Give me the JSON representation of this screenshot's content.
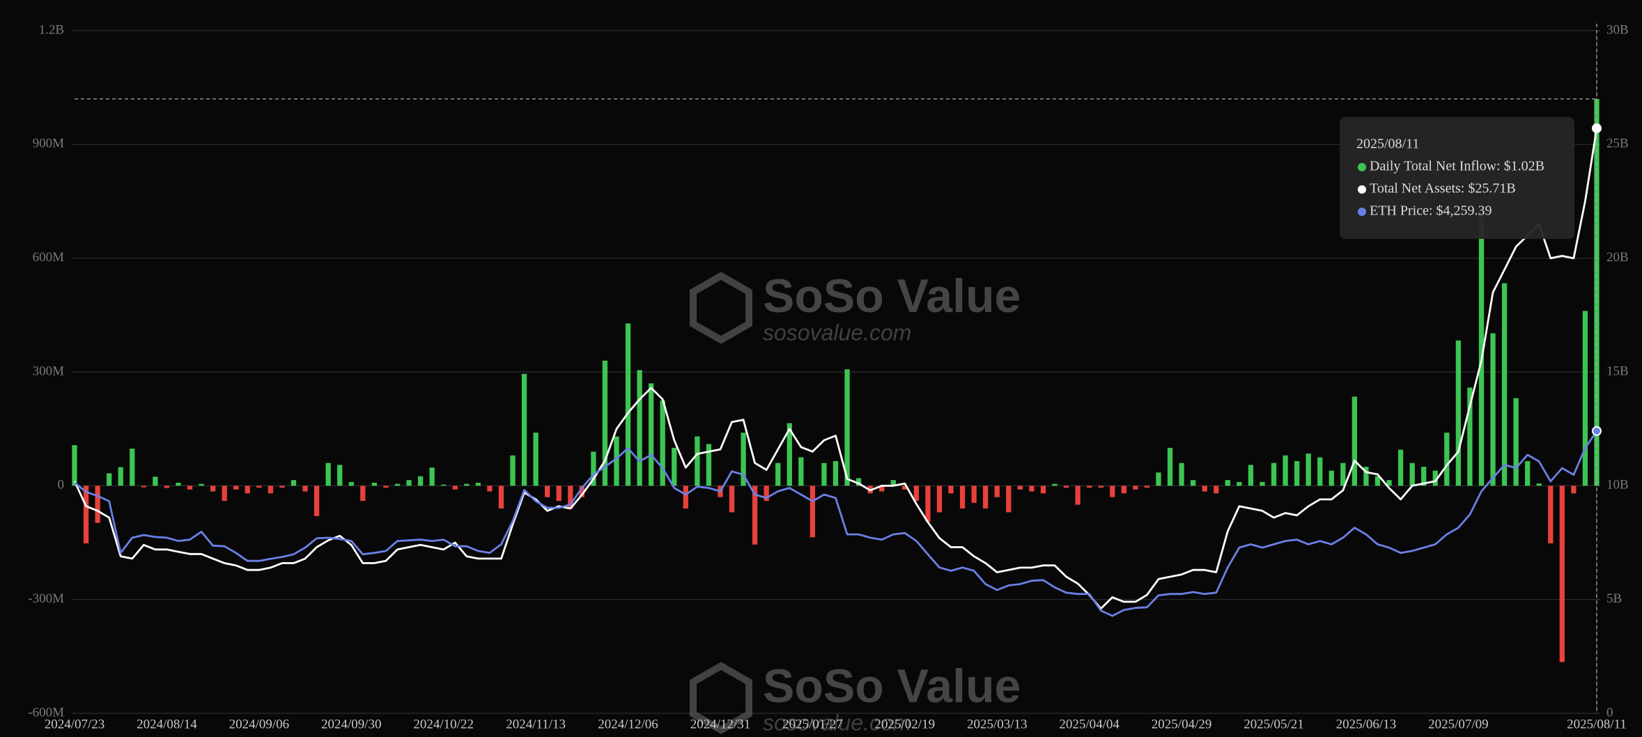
{
  "chart_data": {
    "type": "combo",
    "categories": [
      "2024/07/23",
      null,
      null,
      null,
      null,
      null,
      null,
      null,
      "2024/08/14",
      null,
      null,
      null,
      null,
      null,
      null,
      null,
      "2024/09/06",
      null,
      null,
      null,
      null,
      null,
      null,
      null,
      "2024/09/30",
      null,
      null,
      null,
      null,
      null,
      null,
      null,
      "2024/10/22",
      null,
      null,
      null,
      null,
      null,
      null,
      null,
      "2024/11/13",
      null,
      null,
      null,
      null,
      null,
      null,
      null,
      "2024/12/06",
      null,
      null,
      null,
      null,
      null,
      null,
      null,
      "2024/12/31",
      null,
      null,
      null,
      null,
      null,
      null,
      null,
      "2025/01/27",
      null,
      null,
      null,
      null,
      null,
      null,
      null,
      "2025/02/19",
      null,
      null,
      null,
      null,
      null,
      null,
      null,
      "2025/03/13",
      null,
      null,
      null,
      null,
      null,
      null,
      null,
      "2025/04/04",
      null,
      null,
      null,
      null,
      null,
      null,
      null,
      "2025/04/29",
      null,
      null,
      null,
      null,
      null,
      null,
      null,
      "2025/05/21",
      null,
      null,
      null,
      null,
      null,
      null,
      null,
      "2025/06/13",
      null,
      null,
      null,
      null,
      null,
      null,
      null,
      "2025/07/09",
      null,
      null,
      null,
      null,
      null,
      null,
      null,
      null,
      null,
      null,
      null,
      "2025/08/11"
    ],
    "series": [
      {
        "type": "bar",
        "axis": "y",
        "color": "#3cc552",
        "negative_color": "#e8413b",
        "values": [
          107,
          -152,
          -98,
          33,
          49,
          98,
          -4,
          24,
          -6,
          8,
          -10,
          5,
          -15,
          -40,
          -10,
          -20,
          -5,
          -20,
          -5,
          15,
          -15,
          -80,
          60,
          55,
          10,
          -40,
          8,
          -5,
          5,
          15,
          25,
          48,
          3,
          -10,
          5,
          8,
          -15,
          -60,
          80,
          295,
          140,
          -30,
          -40,
          -60,
          -30,
          90,
          330,
          130,
          428,
          305,
          270,
          225,
          100,
          -60,
          130,
          110,
          -30,
          -70,
          140,
          -155,
          -40,
          60,
          165,
          75,
          -136,
          60,
          65,
          307,
          20,
          -20,
          -15,
          15,
          -10,
          -40,
          -95,
          -70,
          -20,
          -60,
          -45,
          -60,
          -30,
          -70,
          -10,
          -15,
          -20,
          5,
          -5,
          -50,
          -5,
          -5,
          -30,
          -20,
          -10,
          -5,
          35,
          100,
          60,
          15,
          -15,
          -20,
          15,
          10,
          55,
          10,
          60,
          80,
          65,
          85,
          75,
          40,
          60,
          235,
          50,
          25,
          15,
          95,
          60,
          50,
          40,
          140,
          383,
          259,
          727,
          402,
          534,
          231,
          65,
          6,
          -152,
          -465,
          -20,
          461,
          1020
        ]
      },
      {
        "type": "line",
        "axis": "y2",
        "color": "#ffffff",
        "values": [
          10.2,
          9.1,
          8.9,
          8.6,
          6.9,
          6.8,
          7.4,
          7.2,
          7.2,
          7.1,
          7.0,
          7.0,
          6.8,
          6.6,
          6.5,
          6.3,
          6.3,
          6.4,
          6.6,
          6.6,
          6.8,
          7.3,
          7.6,
          7.8,
          7.4,
          6.6,
          6.6,
          6.7,
          7.2,
          7.3,
          7.4,
          7.3,
          7.2,
          7.5,
          6.9,
          6.8,
          6.8,
          6.8,
          8.3,
          9.7,
          9.4,
          8.9,
          9.1,
          9.0,
          9.6,
          10.3,
          11.1,
          12.5,
          13.2,
          13.8,
          14.3,
          13.8,
          12.0,
          10.8,
          11.4,
          11.5,
          11.6,
          12.8,
          12.9,
          11.0,
          10.7,
          11.6,
          12.5,
          11.7,
          11.5,
          12.0,
          12.2,
          10.3,
          10.1,
          9.8,
          10.0,
          10.0,
          10.1,
          9.2,
          8.4,
          7.7,
          7.3,
          7.3,
          6.9,
          6.6,
          6.2,
          6.3,
          6.4,
          6.4,
          6.5,
          6.5,
          6.0,
          5.7,
          5.2,
          4.6,
          5.1,
          4.9,
          4.9,
          5.2,
          5.9,
          6.0,
          6.1,
          6.3,
          6.3,
          6.2,
          8.0,
          9.1,
          9.0,
          8.9,
          8.6,
          8.8,
          8.7,
          9.1,
          9.4,
          9.4,
          9.8,
          11.1,
          10.6,
          10.5,
          9.9,
          9.4,
          10.0,
          10.1,
          10.2,
          10.9,
          11.5,
          13.5,
          15.5,
          18.5,
          19.5,
          20.5,
          21.0,
          21.5,
          20.0,
          20.1,
          20.0,
          22.5,
          25.71
        ]
      },
      {
        "type": "line",
        "axis": "y3",
        "color": "#6b80e6",
        "values": [
          3480,
          3340,
          3280,
          3200,
          2420,
          2650,
          2690,
          2660,
          2650,
          2600,
          2620,
          2740,
          2530,
          2520,
          2420,
          2300,
          2300,
          2330,
          2360,
          2400,
          2500,
          2640,
          2650,
          2630,
          2600,
          2400,
          2420,
          2450,
          2600,
          2610,
          2620,
          2600,
          2620,
          2520,
          2520,
          2450,
          2420,
          2550,
          2900,
          3370,
          3200,
          3100,
          3100,
          3150,
          3400,
          3600,
          3720,
          3845,
          4000,
          3800,
          3900,
          3700,
          3400,
          3300,
          3420,
          3400,
          3350,
          3650,
          3600,
          3300,
          3250,
          3350,
          3400,
          3300,
          3200,
          3300,
          3250,
          2700,
          2700,
          2650,
          2620,
          2700,
          2720,
          2600,
          2400,
          2200,
          2150,
          2200,
          2150,
          1950,
          1860,
          1930,
          1950,
          2000,
          2010,
          1900,
          1820,
          1800,
          1800,
          1550,
          1470,
          1560,
          1590,
          1600,
          1780,
          1800,
          1800,
          1830,
          1800,
          1820,
          2200,
          2500,
          2550,
          2500,
          2550,
          2600,
          2620,
          2550,
          2600,
          2550,
          2650,
          2800,
          2700,
          2550,
          2500,
          2420,
          2450,
          2500,
          2550,
          2700,
          2800,
          3000,
          3350,
          3550,
          3750,
          3700,
          3900,
          3800,
          3500,
          3700,
          3600,
          4000,
          4259.39
        ]
      }
    ],
    "ylim": [
      -600,
      1200
    ],
    "yticks": [
      {
        "value": -600,
        "label": "-600M"
      },
      {
        "value": -300,
        "label": "-300M"
      },
      0,
      {
        "value": 300,
        "label": "300M"
      },
      {
        "value": 600,
        "label": "600M"
      },
      {
        "value": 900,
        "label": "900M"
      },
      {
        "value": 1200,
        "label": "1.2B"
      }
    ],
    "y2lim": [
      0,
      30
    ],
    "y2ticks": [
      0,
      {
        "value": 5,
        "label": "5B"
      },
      {
        "value": 10,
        "label": "10B"
      },
      {
        "value": 15,
        "label": "15B"
      },
      {
        "value": 20,
        "label": "20B"
      },
      {
        "value": 25,
        "label": "25B"
      },
      {
        "value": 30,
        "label": "30B"
      }
    ],
    "y3lim": [
      0,
      10300
    ],
    "grid": true,
    "tooltip": {
      "date": "2025/08/11",
      "items": [
        "Daily Total Net Inflow: $1.02B",
        "Total Net Assets: $25.71B",
        "ETH Price: $4,259.39"
      ]
    },
    "watermark": {
      "brand": "SoSo Value",
      "url": "sosovalue.com"
    }
  }
}
